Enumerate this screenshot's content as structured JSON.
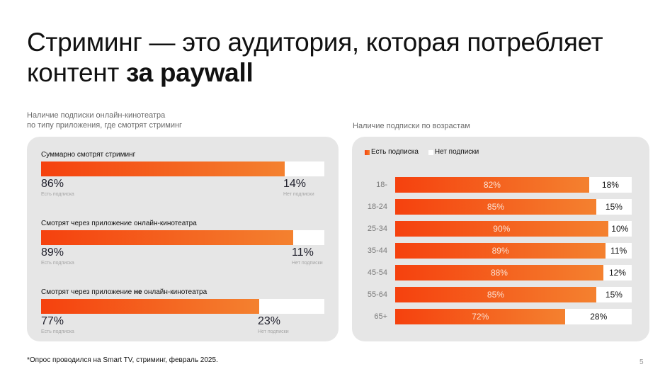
{
  "slide": {
    "title_regular": "Стриминг — это аудитория, которая потребляет контент ",
    "title_bold": "за paywall",
    "footnote": "*Опрос проводился на Smart TV, стриминг, февраль 2025.",
    "page_number": "5"
  },
  "colors": {
    "accent_start": "#f5410e",
    "accent_end": "#f4812f",
    "panel_bg": "#e6e6e6",
    "no_sub": "#ffffff"
  },
  "chart_data": [
    {
      "type": "bar",
      "stacked": true,
      "orientation": "horizontal",
      "title": "Наличие подписки онлайн-кинотеатра по типу приложения, где смотрят стриминг",
      "title_lines": [
        "Наличие подписки онлайн-кинотеатра",
        "по типу приложения, где смотрят стриминг"
      ],
      "series_labels": {
        "yes": "Есть подписка",
        "no": "Нет подписки"
      },
      "categories": [
        {
          "label_before": "Суммарно смотрят стриминг",
          "label_bold": "",
          "label_after": ""
        },
        {
          "label_before": "Смотрят через приложение онлайн-кинотеатра",
          "label_bold": "",
          "label_after": ""
        },
        {
          "label_before": "Смотрят через приложение ",
          "label_bold": "не",
          "label_after": " онлайн-кинотеатра"
        }
      ],
      "series": [
        {
          "name": "Есть подписка",
          "values": [
            86,
            89,
            77
          ],
          "labels": [
            "86%",
            "89%",
            "77%"
          ]
        },
        {
          "name": "Нет подписки",
          "values": [
            14,
            11,
            23
          ],
          "labels": [
            "14%",
            "11%",
            "23%"
          ]
        }
      ],
      "xlim": [
        0,
        100
      ]
    },
    {
      "type": "bar",
      "stacked": true,
      "orientation": "horizontal",
      "title": "Наличие подписки по возрастам",
      "legend": [
        "Есть подписка",
        "Нет подписки"
      ],
      "legend_position": "top-left",
      "categories": [
        "18-",
        "18-24",
        "25-34",
        "35-44",
        "45-54",
        "55-64",
        "65+"
      ],
      "series": [
        {
          "name": "Есть подписка",
          "values": [
            82,
            85,
            90,
            89,
            88,
            85,
            72
          ],
          "labels": [
            "82%",
            "85%",
            "90%",
            "89%",
            "88%",
            "85%",
            "72%"
          ]
        },
        {
          "name": "Нет подписки",
          "values": [
            18,
            15,
            10,
            11,
            12,
            15,
            28
          ],
          "labels": [
            "18%",
            "15%",
            "10%",
            "11%",
            "12%",
            "15%",
            "28%"
          ]
        }
      ],
      "xlim": [
        0,
        100
      ]
    }
  ]
}
